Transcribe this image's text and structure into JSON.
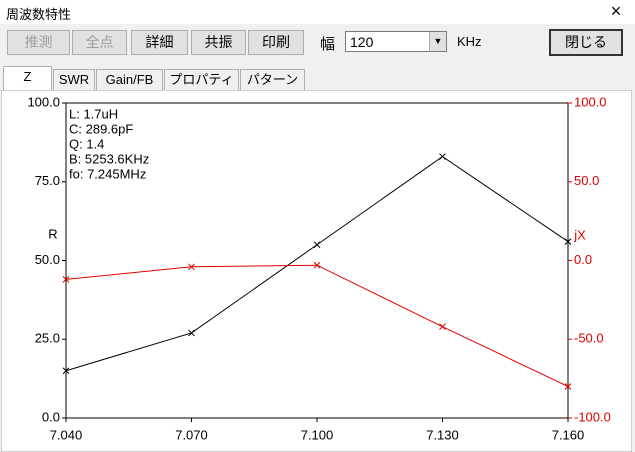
{
  "window": {
    "title": "周波数特性",
    "close": "×"
  },
  "toolbar": {
    "buttons": [
      "推測",
      "全点",
      "詳細",
      "共振",
      "印刷"
    ],
    "width_label": "幅",
    "width_value": "120",
    "unit": "KHz",
    "close_button": "閉じる"
  },
  "tabs": [
    "Z",
    "SWR",
    "Gain/FB",
    "プロパティ",
    "パターン"
  ],
  "chart_data": {
    "type": "line",
    "annotations": [
      "L: 1.7uH",
      "C: 289.6pF",
      "Q: 1.4",
      "B: 5253.6KHz",
      "fo: 7.245MHz"
    ],
    "ylabel": "R",
    "y2label": "jX",
    "x": [
      7.04,
      7.07,
      7.1,
      7.13,
      7.16
    ],
    "xlim": [
      7.04,
      7.16
    ],
    "xticks": [
      {
        "value": 7.04,
        "label": "7.040"
      },
      {
        "value": 7.07,
        "label": "7.070"
      },
      {
        "value": 7.1,
        "label": "7.100"
      },
      {
        "value": 7.13,
        "label": "7.130"
      },
      {
        "value": 7.16,
        "label": "7.160"
      }
    ],
    "ylim": [
      0,
      100
    ],
    "yticks": [
      {
        "value": 0,
        "label": "0.0"
      },
      {
        "value": 25,
        "label": "25.0"
      },
      {
        "value": 50,
        "label": "50.0"
      },
      {
        "value": 75,
        "label": "75.0"
      },
      {
        "value": 100,
        "label": "100.0"
      }
    ],
    "y2lim": [
      -100,
      100
    ],
    "y2ticks": [
      {
        "value": -100,
        "label": "-100.0"
      },
      {
        "value": -50,
        "label": "-50.0"
      },
      {
        "value": 0,
        "label": "0.0"
      },
      {
        "value": 50,
        "label": "50.0"
      },
      {
        "value": 100,
        "label": "100.0"
      }
    ],
    "y2color": "#e00000",
    "series": [
      {
        "name": "R",
        "color": "#000000",
        "values": [
          15,
          27,
          55,
          83,
          56
        ]
      },
      {
        "name": "jX",
        "color": "#e00000",
        "axis": "y2",
        "values": [
          -12,
          -4,
          -3,
          -42,
          -80
        ]
      }
    ]
  }
}
